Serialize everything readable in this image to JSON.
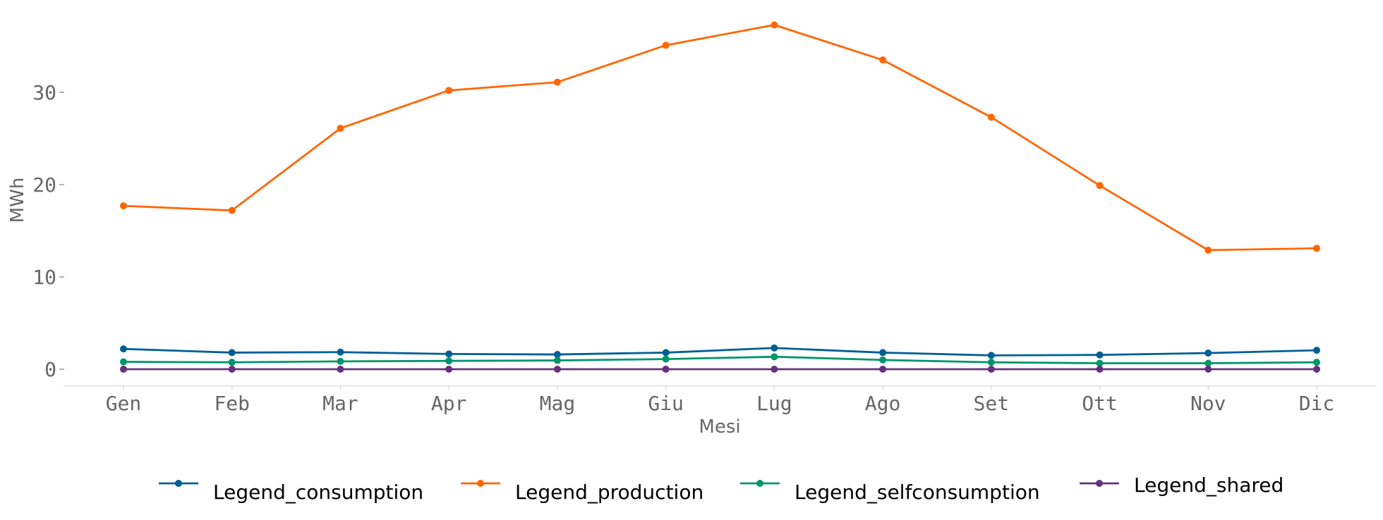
{
  "chart_data": {
    "type": "line",
    "title": "",
    "xlabel": "Mesi",
    "ylabel": "MWh",
    "categories": [
      "Gen",
      "Feb",
      "Mar",
      "Apr",
      "Mag",
      "Giu",
      "Lug",
      "Ago",
      "Set",
      "Ott",
      "Nov",
      "Dic"
    ],
    "yticks": [
      0,
      10,
      20,
      30
    ],
    "ylim": [
      -1.8,
      38.5
    ],
    "grid": false,
    "legend_position": "bottom",
    "series": [
      {
        "name": "Legend_consumption",
        "color": "#005f96",
        "values": [
          2.2,
          1.8,
          1.85,
          1.65,
          1.6,
          1.8,
          2.3,
          1.8,
          1.5,
          1.55,
          1.75,
          2.05
        ]
      },
      {
        "name": "Legend_production",
        "color": "#ff6600",
        "values": [
          17.7,
          17.2,
          26.1,
          30.2,
          31.1,
          35.1,
          37.3,
          33.5,
          27.3,
          19.9,
          12.9,
          13.1
        ]
      },
      {
        "name": "Legend_selfconsumption",
        "color": "#00966b",
        "values": [
          0.8,
          0.75,
          0.85,
          0.9,
          0.95,
          1.1,
          1.35,
          1.0,
          0.75,
          0.65,
          0.65,
          0.75
        ]
      },
      {
        "name": "Legend_shared",
        "color": "#66307f",
        "values": [
          0.0,
          0.0,
          0.0,
          0.0,
          0.0,
          0.0,
          0.0,
          0.0,
          0.0,
          0.0,
          0.0,
          0.0
        ]
      }
    ]
  }
}
